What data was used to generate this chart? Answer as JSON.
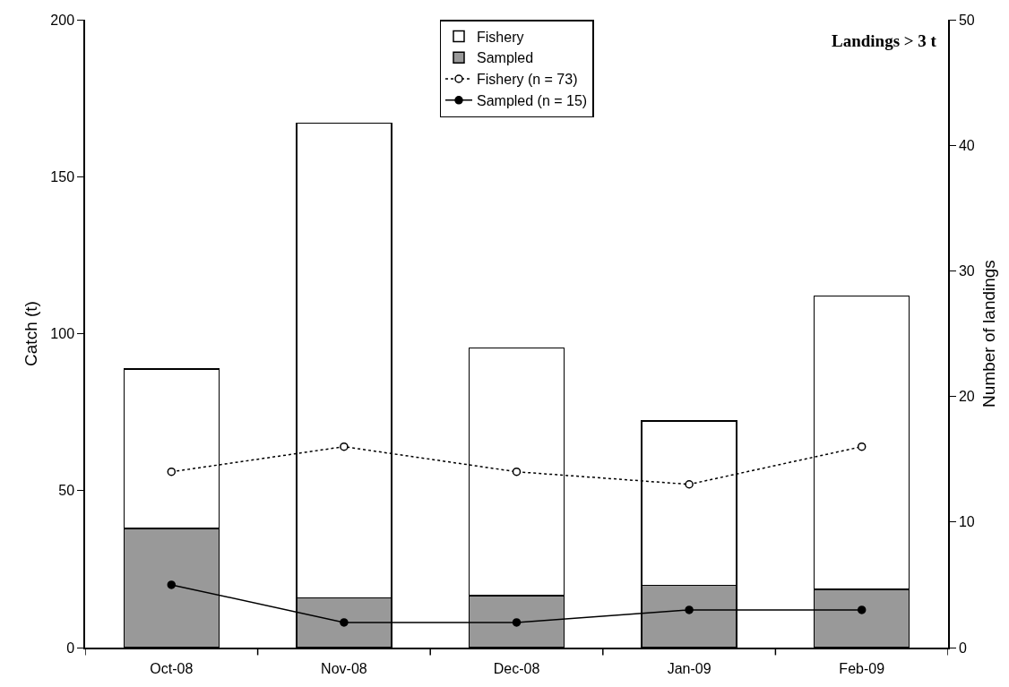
{
  "chart_data": {
    "type": "bar",
    "stacked": true,
    "annotations": [
      "Landings > 3 t"
    ],
    "ylabel": "Catch (t)",
    "y2label": "Number of landings",
    "categories": [
      "Oct-08",
      "Nov-08",
      "Dec-08",
      "Jan-09",
      "Feb-09"
    ],
    "ylim": [
      0,
      200
    ],
    "yticks": [
      0,
      50,
      100,
      150,
      200
    ],
    "y2lim": [
      0,
      50
    ],
    "y2ticks": [
      0,
      10,
      20,
      30,
      40,
      50
    ],
    "legend": "top",
    "series": [
      {
        "name": "Sampled",
        "color": "#999999",
        "values": [
          38,
          15.8,
          16.5,
          19.8,
          18.6
        ]
      },
      {
        "name": "Fishery",
        "color": "#ffffff",
        "values": [
          50.7,
          151.2,
          79,
          52.4,
          93.4
        ]
      },
      {
        "name": "Fishery (n = 73)",
        "type": "line",
        "axis": "y2",
        "color": "#000000",
        "line_style": "dotted",
        "marker": "circle",
        "values": [
          14,
          16,
          14,
          13,
          16
        ]
      },
      {
        "name": "Sampled (n = 15)",
        "type": "line",
        "axis": "y2",
        "color": "#000000",
        "line_style": "solid",
        "marker": "circle",
        "values": [
          5,
          2,
          2,
          3,
          3
        ]
      }
    ]
  }
}
